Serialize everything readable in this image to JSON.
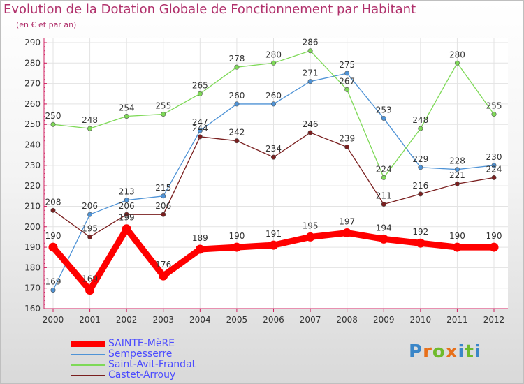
{
  "title": "Evolution de la Dotation Globale de Fonctionnement par Habitant",
  "subtitle": "(en € et par an)",
  "logo": {
    "text": "Proxiti",
    "letter_colors": [
      "#3a86c8",
      "#e8701a",
      "#6fba2c",
      "#e8701a",
      "#3a86c8",
      "#6fba2c",
      "#3a86c8"
    ]
  },
  "chart_data": {
    "type": "line",
    "title": "Evolution de la Dotation Globale de Fonctionnement par Habitant",
    "subtitle": "(en € et par an)",
    "xlabel": "",
    "ylabel": "",
    "ylim": [
      160,
      290
    ],
    "y_ticks": [
      160,
      170,
      180,
      190,
      200,
      210,
      220,
      230,
      240,
      250,
      260,
      270,
      280,
      290
    ],
    "x": [
      "2000",
      "2001",
      "2002",
      "2003",
      "2004",
      "2005",
      "2006",
      "2007",
      "2008",
      "2009",
      "2010",
      "2011",
      "2012"
    ],
    "grid": true,
    "legend_position": "bottom-left",
    "series": [
      {
        "name": "SAINTE-MèRE",
        "color": "#ff0000",
        "values": [
          190,
          169,
          199,
          176,
          189,
          190,
          191,
          195,
          197,
          194,
          192,
          190,
          190
        ]
      },
      {
        "name": "Sempesserre",
        "color": "#4f93d6",
        "values": [
          169,
          206,
          213,
          215,
          247,
          260,
          260,
          271,
          275,
          253,
          229,
          228,
          230
        ]
      },
      {
        "name": "Saint-Avit-Frandat",
        "color": "#7ed957",
        "values": [
          250,
          248,
          254,
          255,
          265,
          278,
          280,
          286,
          267,
          224,
          248,
          280,
          255
        ]
      },
      {
        "name": "Castet-Arrouy",
        "color": "#7a1f1f",
        "values": [
          208,
          195,
          206,
          206,
          244,
          242,
          234,
          246,
          239,
          211,
          216,
          221,
          224
        ]
      }
    ]
  }
}
